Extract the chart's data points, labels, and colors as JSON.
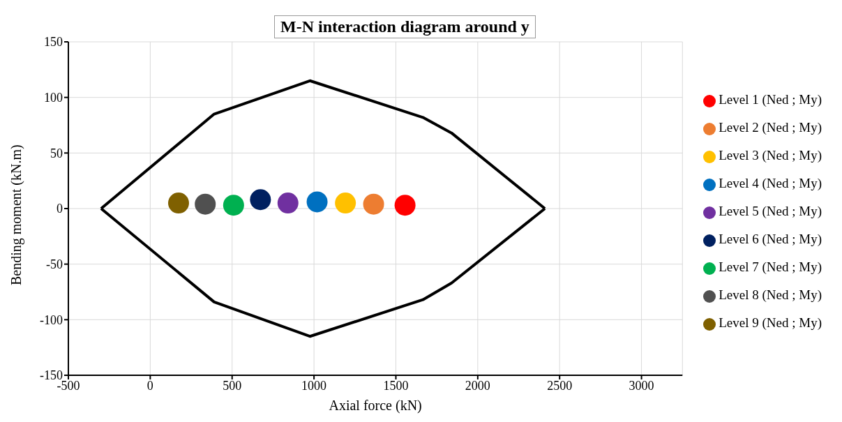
{
  "chart_data": {
    "type": "scatter",
    "title": "M-N interaction diagram around y",
    "xlabel": "Axial force (kN)",
    "ylabel": "Bending moment (kN.m)",
    "xlim": [
      -500,
      3250
    ],
    "xticks": [
      -500,
      0,
      500,
      1000,
      1500,
      2000,
      2500,
      3000
    ],
    "ylim": [
      -150,
      150
    ],
    "yticks": [
      -150,
      -100,
      -50,
      0,
      50,
      100,
      150
    ],
    "grid": true,
    "legend": "right",
    "marker": "circle",
    "series": [
      {
        "type": "line",
        "marker": "none",
        "color": "#000000",
        "x": [
          -300,
          390,
          975,
          1665,
          1840,
          2410
        ],
        "values": [
          0,
          85,
          115,
          82,
          68,
          0
        ]
      },
      {
        "type": "line",
        "marker": "none",
        "color": "#000000",
        "x": [
          -300,
          390,
          975,
          1665,
          1840,
          2410
        ],
        "values": [
          0,
          -84,
          -115,
          -82,
          -67,
          0
        ]
      },
      {
        "name": "Level 1 (Ned ; My)",
        "color": "#ff0000",
        "x": [
          1556
        ],
        "values": [
          3
        ]
      },
      {
        "name": "Level 2 (Ned ; My)",
        "color": "#ed7d31",
        "x": [
          1364
        ],
        "values": [
          4
        ]
      },
      {
        "name": "Level 3 (Ned ; My)",
        "color": "#ffc000",
        "x": [
          1192
        ],
        "values": [
          5
        ]
      },
      {
        "name": "Level 4 (Ned ; My)",
        "color": "#0070c0",
        "x": [
          1019
        ],
        "values": [
          6
        ]
      },
      {
        "name": "Level 5 (Ned ; My)",
        "color": "#7030a0",
        "x": [
          841
        ],
        "values": [
          5
        ]
      },
      {
        "name": "Level 6 (Ned ; My)",
        "color": "#002060",
        "x": [
          673
        ],
        "values": [
          8
        ]
      },
      {
        "name": "Level 7 (Ned ; My)",
        "color": "#00b050",
        "x": [
          509
        ],
        "values": [
          3
        ]
      },
      {
        "name": "Level 8 (Ned ; My)",
        "color": "#505050",
        "x": [
          336
        ],
        "values": [
          4
        ]
      },
      {
        "name": "Level 9 (Ned ; My)",
        "color": "#7f6000",
        "x": [
          173
        ],
        "values": [
          5
        ]
      }
    ]
  }
}
